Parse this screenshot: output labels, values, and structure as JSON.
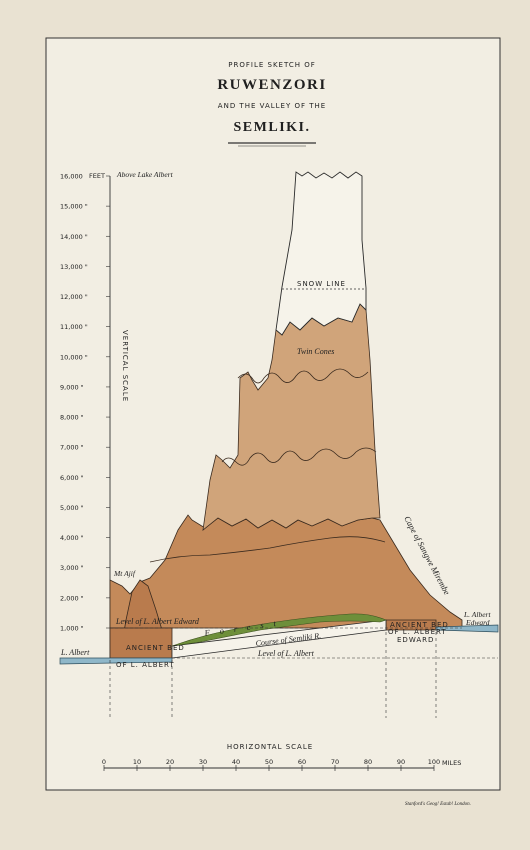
{
  "title": {
    "line1": "PROFILE SKETCH OF",
    "line2": "RUWENZORI",
    "line3": "AND THE VALLEY OF THE",
    "line4": "SEMLIKI."
  },
  "vertical_scale": {
    "label": "VERTICAL SCALE",
    "unit": "FEET",
    "top_note": "Above Lake Albert",
    "ticks": [
      "16,000",
      "15,000",
      "14,000",
      "13,000",
      "12,000",
      "11,000",
      "10,000",
      "9,000",
      "8,000",
      "7,000",
      "6,000",
      "5,000",
      "4,000",
      "3,000",
      "2,000",
      "1,000"
    ],
    "tick_suffix": "\"",
    "tick_values": [
      16000,
      15000,
      14000,
      13000,
      12000,
      11000,
      10000,
      9000,
      8000,
      7000,
      6000,
      5000,
      4000,
      3000,
      2000,
      1000
    ]
  },
  "horizontal_scale": {
    "label": "HORIZONTAL SCALE",
    "unit": "MILES",
    "ticks": [
      "0",
      "10",
      "20",
      "30",
      "40",
      "50",
      "60",
      "70",
      "80",
      "90",
      "100"
    ],
    "tick_values": [
      0,
      10,
      20,
      30,
      40,
      50,
      60,
      70,
      80,
      90,
      100
    ]
  },
  "annotations": {
    "snow_line": "SNOW LINE",
    "twin_cones": "Twin Cones",
    "mt_ajif": "Mt Ajif",
    "level_albert_edward": "Level of L. Albert Edward",
    "forest": "Forest",
    "course_semliki": "Course of Semliki R.",
    "level_albert": "Level of L. Albert",
    "l_albert": "L. Albert",
    "ancient_bed_left": "ANCIENT BED",
    "of_l_albert": "OF L. ALBERT",
    "ancient_bed_right": "ANCIENT BED",
    "of_l_albert_edward_1": "OF L. ALBERT",
    "of_l_albert_edward_2": "EDWARD",
    "cape": "Cape of Sangwe Mirembe",
    "l_albert_edward_1": "L. Albert",
    "l_albert_edward_2": "Edward"
  },
  "imprint": "Stanford's Geog! Estab! London.",
  "colors": {
    "paper": "#f2eee3",
    "background": "#e9e2d2",
    "snow": "#f6f3ea",
    "upper_rock": "#dcbf99",
    "mid_rock": "#d0a47a",
    "lower_rock": "#c48a5a",
    "ancient_bed": "#b97b4d",
    "lake": "#8fb7c9",
    "forest": "#6e8f3a"
  }
}
